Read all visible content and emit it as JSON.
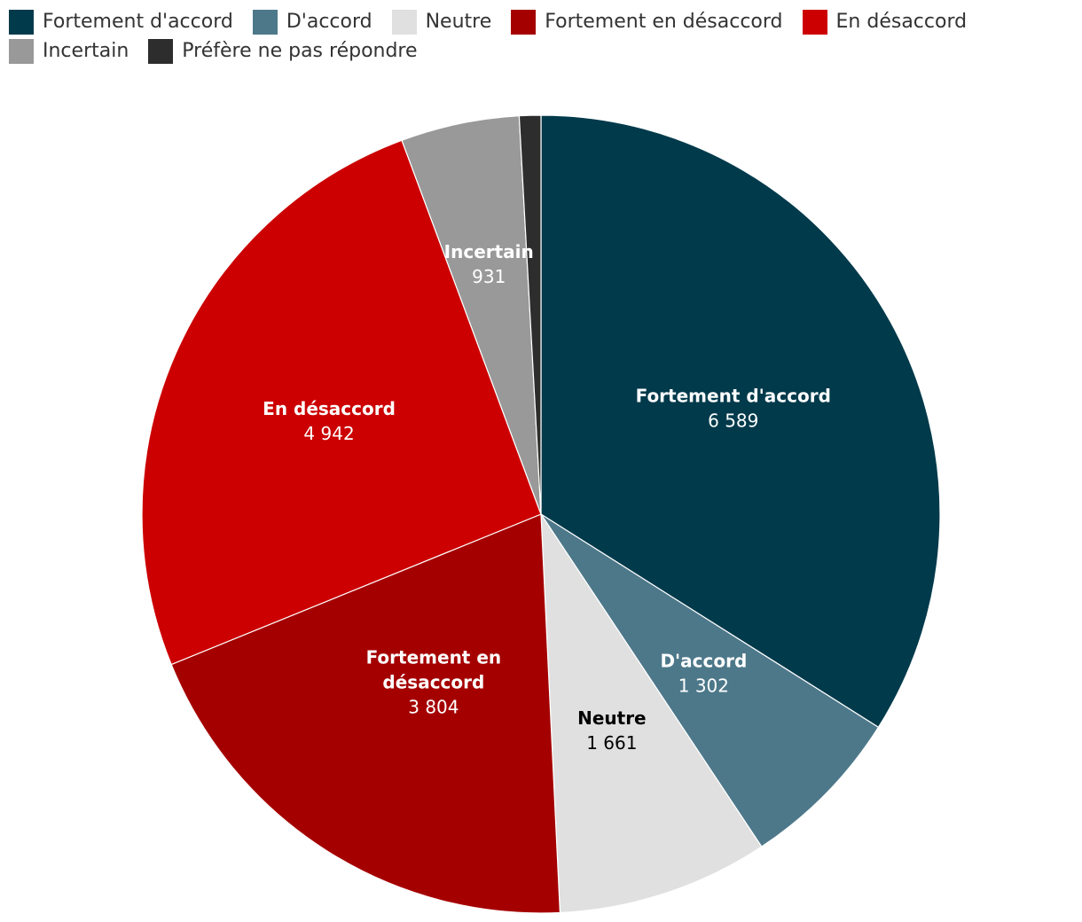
{
  "chart_data": {
    "type": "pie",
    "title": "",
    "legend_position": "top-left",
    "slices": [
      {
        "label": "Fortement d'accord",
        "value": 6589,
        "value_label": "6 589",
        "color": "#003a4b",
        "text_color": "#ffffff"
      },
      {
        "label": "D'accord",
        "value": 1302,
        "value_label": "1 302",
        "color": "#4d788a",
        "text_color": "#ffffff"
      },
      {
        "label": "Neutre",
        "value": 1661,
        "value_label": "1 661",
        "color": "#e0e0e0",
        "text_color": "#000000"
      },
      {
        "label": "Fortement en désaccord",
        "value": 3804,
        "value_label": "3 804",
        "color": "#a50000",
        "text_color": "#ffffff"
      },
      {
        "label": "En désaccord",
        "value": 4942,
        "value_label": "4 942",
        "color": "#cc0000",
        "text_color": "#ffffff"
      },
      {
        "label": "Incertain",
        "value": 931,
        "value_label": "931",
        "color": "#999999",
        "text_color": "#ffffff"
      },
      {
        "label": "Préfère ne pas répondre",
        "value": 169,
        "value_label": "",
        "color": "#2d2d2d",
        "text_color": "#ffffff"
      }
    ]
  }
}
